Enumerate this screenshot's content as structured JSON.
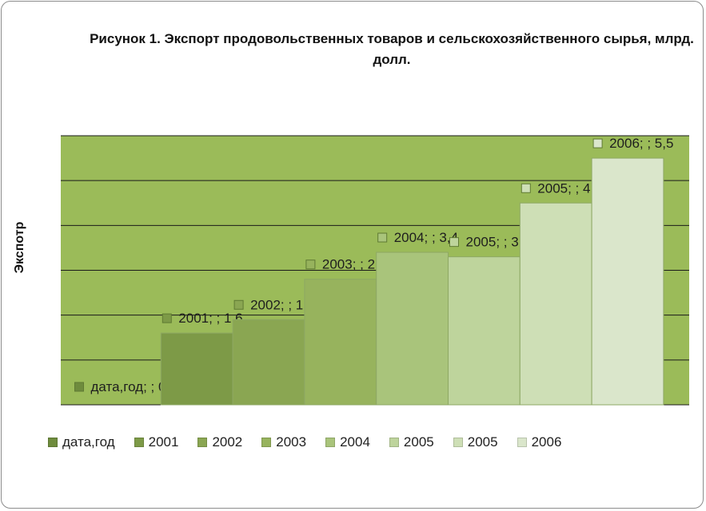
{
  "chart_data": {
    "type": "bar",
    "title": "Рисунок 1. Экспорт продовольственных товаров и сельскохозяйственного сырья, млрд. долл.",
    "ylabel": "Экспотр",
    "xlabel": "",
    "ylim": [
      0,
      6
    ],
    "grid": true,
    "legend_position": "bottom",
    "plot_background": "#9bbb59",
    "categories": [
      "дата,год",
      "2001",
      "2002",
      "2003",
      "2004",
      "2005",
      "2005",
      "2006"
    ],
    "values": [
      0,
      1.6,
      1.9,
      2.8,
      3.4,
      3.3,
      4.5,
      5.5
    ],
    "colors": [
      "#6e8b3d",
      "#7d9a47",
      "#8aa652",
      "#97b35d",
      "#a9c47b",
      "#bed49c",
      "#cedfb6",
      "#dae6cb"
    ],
    "data_labels": [
      "дата,год; ; 0",
      "2001; ; 1,6",
      "2002; ; 1,9",
      "2003; ; 2,8",
      "2004; ; 3,4",
      "2005; ; 3,3",
      "2005; ; 4,5",
      "2006; ; 5,5"
    ]
  }
}
